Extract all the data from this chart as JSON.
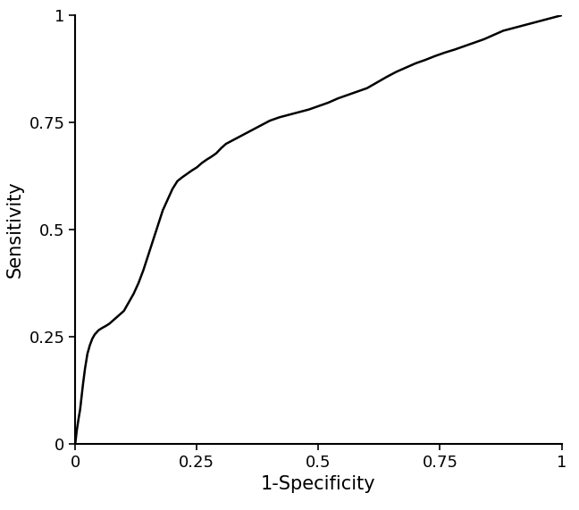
{
  "title": "",
  "xlabel": "1-Specificity",
  "ylabel": "Sensitivity",
  "xlim": [
    0,
    1
  ],
  "ylim": [
    0,
    1
  ],
  "xticks": [
    0,
    0.25,
    0.5,
    0.75,
    1
  ],
  "yticks": [
    0,
    0.25,
    0.5,
    0.75,
    1
  ],
  "line_color": "#000000",
  "line_width": 1.8,
  "background_color": "#ffffff",
  "xlabel_fontsize": 15,
  "ylabel_fontsize": 15,
  "tick_fontsize": 13,
  "roc_x": [
    0.0,
    0.001,
    0.002,
    0.003,
    0.005,
    0.007,
    0.01,
    0.013,
    0.016,
    0.02,
    0.025,
    0.03,
    0.035,
    0.04,
    0.048,
    0.055,
    0.063,
    0.07,
    0.078,
    0.085,
    0.09,
    0.095,
    0.1,
    0.105,
    0.11,
    0.115,
    0.12,
    0.13,
    0.14,
    0.15,
    0.16,
    0.17,
    0.18,
    0.19,
    0.2,
    0.21,
    0.22,
    0.23,
    0.24,
    0.25,
    0.26,
    0.27,
    0.28,
    0.29,
    0.3,
    0.31,
    0.32,
    0.33,
    0.34,
    0.35,
    0.36,
    0.37,
    0.38,
    0.39,
    0.4,
    0.42,
    0.44,
    0.46,
    0.48,
    0.5,
    0.52,
    0.54,
    0.56,
    0.58,
    0.6,
    0.62,
    0.64,
    0.66,
    0.68,
    0.7,
    0.72,
    0.74,
    0.76,
    0.78,
    0.8,
    0.82,
    0.84,
    0.86,
    0.88,
    0.9,
    0.92,
    0.94,
    0.96,
    0.98,
    1.0
  ],
  "roc_y": [
    0.0,
    0.01,
    0.02,
    0.03,
    0.045,
    0.06,
    0.08,
    0.11,
    0.14,
    0.175,
    0.21,
    0.23,
    0.245,
    0.255,
    0.265,
    0.27,
    0.275,
    0.28,
    0.288,
    0.295,
    0.3,
    0.305,
    0.31,
    0.32,
    0.33,
    0.34,
    0.35,
    0.375,
    0.405,
    0.44,
    0.475,
    0.51,
    0.545,
    0.57,
    0.595,
    0.613,
    0.622,
    0.63,
    0.638,
    0.645,
    0.655,
    0.663,
    0.67,
    0.678,
    0.69,
    0.7,
    0.706,
    0.712,
    0.718,
    0.724,
    0.73,
    0.736,
    0.742,
    0.748,
    0.754,
    0.762,
    0.768,
    0.774,
    0.78,
    0.788,
    0.796,
    0.806,
    0.814,
    0.822,
    0.83,
    0.843,
    0.856,
    0.868,
    0.878,
    0.888,
    0.896,
    0.905,
    0.913,
    0.92,
    0.928,
    0.936,
    0.944,
    0.954,
    0.964,
    0.97,
    0.976,
    0.982,
    0.988,
    0.994,
    1.0
  ]
}
